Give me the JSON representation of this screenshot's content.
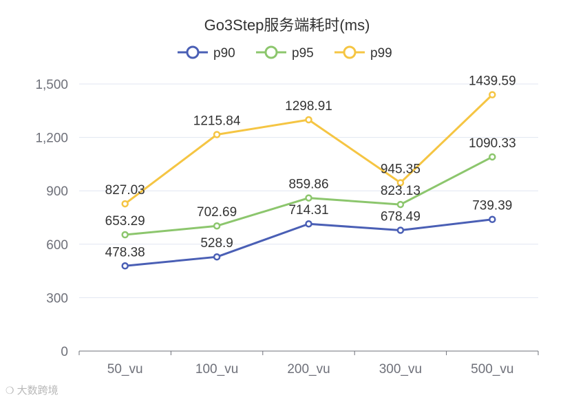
{
  "chart_data": {
    "type": "line",
    "title": "Go3Step服务端耗时(ms)",
    "categories": [
      "50_vu",
      "100_vu",
      "200_vu",
      "300_vu",
      "500_vu"
    ],
    "ylim": [
      0,
      1500
    ],
    "yticks": [
      0,
      300,
      600,
      900,
      1200,
      1500
    ],
    "ytick_labels": [
      "0",
      "300",
      "600",
      "900",
      "1,200",
      "1,500"
    ],
    "grid": true,
    "legend": "top-center",
    "series": [
      {
        "name": "p90",
        "color": "#4a5fb5",
        "values": [
          478.38,
          528.9,
          714.31,
          678.49,
          739.39
        ],
        "labels": [
          "478.38",
          "528.9",
          "714.31",
          "678.49",
          "739.39"
        ]
      },
      {
        "name": "p95",
        "color": "#8cc66d",
        "values": [
          653.29,
          702.69,
          859.86,
          823.13,
          1090.33
        ],
        "labels": [
          "653.29",
          "702.69",
          "859.86",
          "823.13",
          "1090.33"
        ]
      },
      {
        "name": "p99",
        "color": "#f5c543",
        "values": [
          827.03,
          1215.84,
          1298.91,
          945.35,
          1439.59
        ],
        "labels": [
          "827.03",
          "1215.84",
          "1298.91",
          "945.35",
          "1439.59"
        ]
      }
    ]
  },
  "watermark": {
    "text": "大数跨境",
    "icon": "logo-icon"
  }
}
